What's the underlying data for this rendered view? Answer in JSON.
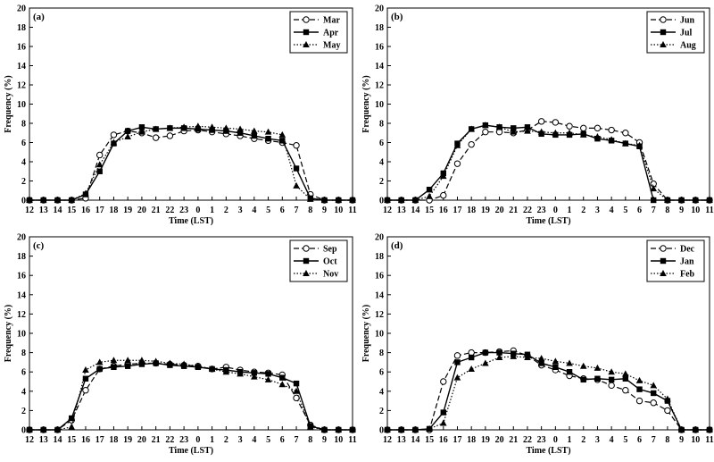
{
  "chart_data": [
    {
      "type": "line",
      "panel_label": "(a)",
      "xlabel": "Time (LST)",
      "ylabel": "Frequency (%)",
      "ylim": [
        0,
        20
      ],
      "yticks": [
        "0",
        "2",
        "4",
        "6",
        "8",
        "10",
        "12",
        "14",
        "16",
        "18",
        "20"
      ],
      "categories": [
        "12",
        "13",
        "14",
        "15",
        "16",
        "17",
        "18",
        "19",
        "20",
        "21",
        "22",
        "23",
        "0",
        "1",
        "2",
        "3",
        "4",
        "5",
        "6",
        "7",
        "8",
        "9",
        "10",
        "11"
      ],
      "legend_position": "top-right",
      "series": [
        {
          "name": "Mar",
          "marker": "open-circle",
          "line": "dashed",
          "values": [
            0,
            0,
            0,
            0,
            0.2,
            4.7,
            6.8,
            7.2,
            7.0,
            6.5,
            6.7,
            7.2,
            7.3,
            7.1,
            6.9,
            6.7,
            6.4,
            6.2,
            6.0,
            5.7,
            0.6,
            0,
            0,
            0
          ]
        },
        {
          "name": "Apr",
          "marker": "filled-square",
          "line": "solid",
          "values": [
            0,
            0,
            0,
            0,
            0.6,
            3.0,
            5.9,
            7.2,
            7.6,
            7.4,
            7.5,
            7.5,
            7.4,
            7.3,
            7.2,
            7.0,
            6.7,
            6.4,
            6.2,
            3.3,
            0.2,
            0,
            0,
            0
          ]
        },
        {
          "name": "May",
          "marker": "filled-triangle",
          "line": "dotted",
          "values": [
            0,
            0,
            0,
            0,
            0.7,
            3.7,
            6.0,
            6.6,
            7.1,
            7.4,
            7.5,
            7.6,
            7.7,
            7.6,
            7.5,
            7.4,
            7.2,
            7.1,
            6.8,
            1.5,
            0.1,
            0,
            0,
            0
          ]
        }
      ]
    },
    {
      "type": "line",
      "panel_label": "(b)",
      "xlabel": "Time (LST)",
      "ylabel": "Frequency (%)",
      "ylim": [
        0,
        20
      ],
      "yticks": [
        "0",
        "2",
        "4",
        "6",
        "8",
        "10",
        "12",
        "14",
        "16",
        "18",
        "20"
      ],
      "categories": [
        "12",
        "13",
        "14",
        "15",
        "16",
        "17",
        "18",
        "19",
        "20",
        "21",
        "22",
        "23",
        "0",
        "1",
        "2",
        "3",
        "4",
        "5",
        "6",
        "7",
        "8",
        "9",
        "10",
        "11"
      ],
      "legend_position": "top-right",
      "series": [
        {
          "name": "Jun",
          "marker": "open-circle",
          "line": "dashed",
          "values": [
            0,
            0,
            0,
            0,
            0.5,
            3.8,
            5.8,
            7.1,
            7.1,
            7.0,
            7.3,
            8.2,
            8.1,
            7.7,
            7.5,
            7.5,
            7.3,
            7.0,
            6.0,
            1.7,
            0,
            0,
            0,
            0
          ]
        },
        {
          "name": "Jul",
          "marker": "filled-square",
          "line": "solid",
          "values": [
            0,
            0,
            0,
            1.1,
            2.8,
            5.9,
            7.4,
            7.8,
            7.6,
            7.5,
            7.6,
            6.9,
            6.8,
            6.8,
            6.9,
            6.4,
            6.2,
            5.9,
            5.6,
            0,
            0,
            0,
            0,
            0
          ]
        },
        {
          "name": "Aug",
          "marker": "filled-triangle",
          "line": "dotted",
          "values": [
            0,
            0,
            0,
            0.4,
            2.5,
            5.7,
            7.4,
            7.8,
            7.6,
            7.1,
            7.2,
            7.1,
            7.0,
            7.0,
            6.8,
            6.6,
            6.3,
            5.9,
            5.7,
            1.2,
            0,
            0,
            0,
            0
          ]
        }
      ]
    },
    {
      "type": "line",
      "panel_label": "(c)",
      "xlabel": "Time (LST)",
      "ylabel": "Frequency (%)",
      "ylim": [
        0,
        20
      ],
      "yticks": [
        "0",
        "2",
        "4",
        "6",
        "8",
        "10",
        "12",
        "14",
        "16",
        "18",
        "20"
      ],
      "categories": [
        "12",
        "13",
        "14",
        "15",
        "16",
        "17",
        "18",
        "19",
        "20",
        "21",
        "22",
        "23",
        "0",
        "1",
        "2",
        "3",
        "4",
        "5",
        "6",
        "7",
        "8",
        "9",
        "10",
        "11"
      ],
      "legend_position": "top-right",
      "series": [
        {
          "name": "Sep",
          "marker": "open-circle",
          "line": "dashed",
          "values": [
            0,
            0,
            0,
            1.0,
            4.1,
            6.3,
            6.6,
            6.8,
            6.9,
            6.9,
            6.8,
            6.7,
            6.6,
            6.3,
            6.5,
            6.2,
            6.0,
            5.9,
            5.7,
            3.3,
            0.5,
            0,
            0,
            0
          ]
        },
        {
          "name": "Oct",
          "marker": "filled-square",
          "line": "solid",
          "values": [
            0,
            0,
            0,
            1.2,
            5.3,
            6.3,
            6.5,
            6.6,
            6.8,
            6.9,
            6.7,
            6.6,
            6.5,
            6.3,
            6.2,
            6.0,
            5.9,
            5.8,
            5.4,
            4.8,
            0.4,
            0,
            0,
            0
          ]
        },
        {
          "name": "Nov",
          "marker": "filled-triangle",
          "line": "dotted",
          "values": [
            0,
            0,
            0,
            0.3,
            6.2,
            7.0,
            7.2,
            7.2,
            7.2,
            7.1,
            6.9,
            6.8,
            6.6,
            6.3,
            6.0,
            5.8,
            5.5,
            5.2,
            4.7,
            4.0,
            0.3,
            0,
            0,
            0
          ]
        }
      ]
    },
    {
      "type": "line",
      "panel_label": "(d)",
      "xlabel": "Time (LST)",
      "ylabel": "Frequency (%)",
      "ylim": [
        0,
        20
      ],
      "yticks": [
        "0",
        "2",
        "4",
        "6",
        "8",
        "10",
        "12",
        "14",
        "16",
        "18",
        "20"
      ],
      "categories": [
        "12",
        "13",
        "14",
        "15",
        "16",
        "17",
        "18",
        "19",
        "20",
        "21",
        "22",
        "23",
        "0",
        "1",
        "2",
        "3",
        "4",
        "5",
        "6",
        "7",
        "8",
        "9",
        "10",
        "11"
      ],
      "legend_position": "top-right",
      "series": [
        {
          "name": "Dec",
          "marker": "open-circle",
          "line": "dashed",
          "values": [
            0,
            0,
            0,
            0,
            5.0,
            7.7,
            8.0,
            8.0,
            8.1,
            8.2,
            7.7,
            6.7,
            6.2,
            5.6,
            5.3,
            5.2,
            4.6,
            4.1,
            3.0,
            2.8,
            2.0,
            0,
            0,
            0
          ]
        },
        {
          "name": "Jan",
          "marker": "filled-square",
          "line": "solid",
          "values": [
            0,
            0,
            0,
            0.1,
            1.8,
            7.0,
            7.5,
            8.0,
            8.0,
            7.9,
            7.8,
            6.9,
            6.5,
            6.0,
            5.2,
            5.3,
            5.2,
            5.3,
            4.2,
            3.8,
            3.0,
            0,
            0,
            0
          ]
        },
        {
          "name": "Feb",
          "marker": "filled-triangle",
          "line": "dotted",
          "values": [
            0,
            0,
            0,
            0.1,
            0.7,
            5.4,
            6.3,
            6.9,
            7.5,
            7.6,
            7.5,
            7.4,
            7.1,
            6.9,
            6.6,
            6.4,
            6.0,
            5.8,
            5.1,
            4.6,
            3.2,
            0,
            0,
            0
          ]
        }
      ]
    }
  ]
}
